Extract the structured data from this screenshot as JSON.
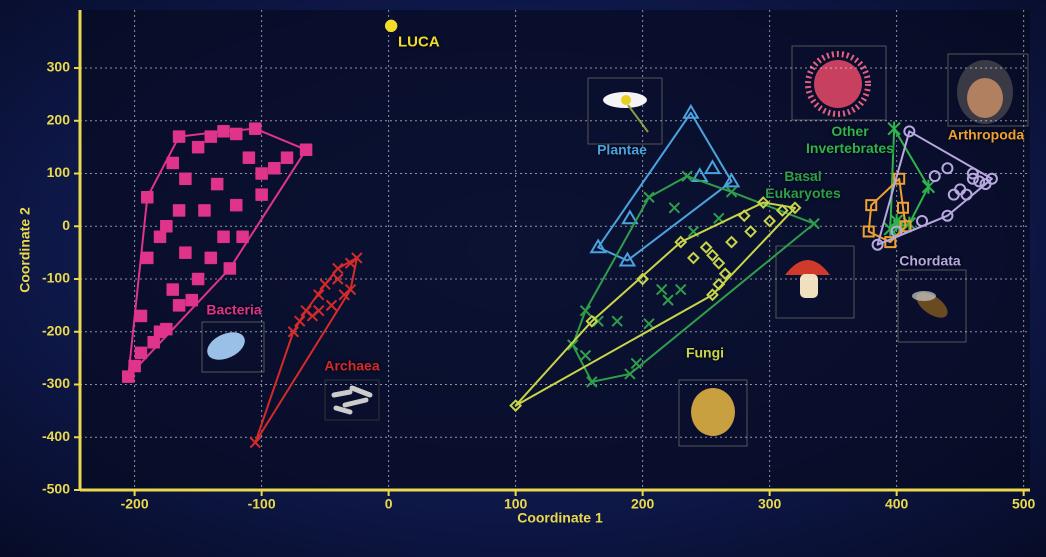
{
  "chart_data": {
    "type": "scatter",
    "xlabel": "Coordinate 1",
    "ylabel": "Coordinate 2",
    "xlim": [
      -243,
      505
    ],
    "ylim": [
      -500,
      410
    ],
    "xticks": [
      -200,
      -100,
      0,
      100,
      200,
      300,
      400,
      500
    ],
    "yticks": [
      -500,
      -400,
      -300,
      -200,
      -100,
      0,
      100,
      200,
      300
    ],
    "grid": true,
    "series": [
      {
        "name": "Bacteria",
        "color": "#e0338a",
        "marker": "filled-square",
        "x": [
          -205,
          -200,
          -195,
          -185,
          -175,
          -165,
          -195,
          -190,
          -190,
          -180,
          -175,
          -165,
          -160,
          -170,
          -165,
          -150,
          -140,
          -130,
          -120,
          -105,
          -110,
          -100,
          -90,
          -80,
          -65,
          -100,
          -120,
          -130,
          -140,
          -150,
          -155,
          -125,
          -115,
          -135,
          -145,
          -160,
          -170,
          -180
        ],
        "y": [
          -285,
          -265,
          -240,
          -220,
          -195,
          -150,
          -170,
          -60,
          55,
          -20,
          0,
          30,
          90,
          120,
          170,
          150,
          170,
          180,
          175,
          185,
          130,
          100,
          110,
          130,
          145,
          60,
          40,
          -20,
          -60,
          -100,
          -140,
          -80,
          -20,
          80,
          30,
          -50,
          -120,
          -200
        ]
      },
      {
        "name": "Archaea",
        "color": "#d42a2a",
        "marker": "cross",
        "x": [
          -105,
          -75,
          -70,
          -65,
          -55,
          -50,
          -40,
          -30,
          -25,
          -30,
          -35,
          -45,
          -60,
          -40,
          -55
        ],
        "y": [
          -410,
          -200,
          -180,
          -160,
          -130,
          -110,
          -80,
          -70,
          -60,
          -120,
          -130,
          -150,
          -170,
          -100,
          -160
        ]
      },
      {
        "name": "LUCA",
        "color": "#f2dc2a",
        "marker": "dot",
        "x": [
          2
        ],
        "y": [
          380
        ]
      },
      {
        "name": "Plantae",
        "color": "#4aa3df",
        "marker": "open-triangle",
        "x": [
          238,
          270,
          255,
          245,
          190,
          188,
          165
        ],
        "y": [
          215,
          85,
          110,
          95,
          15,
          -65,
          -40
        ]
      },
      {
        "name": "Basal Eukaryotes",
        "color": "#2e9e4a",
        "marker": "cross",
        "x": [
          145,
          160,
          190,
          195,
          205,
          215,
          220,
          230,
          180,
          165,
          155,
          155,
          205,
          225,
          235,
          270,
          260,
          240,
          335
        ],
        "y": [
          -225,
          -295,
          -280,
          -260,
          -185,
          -120,
          -140,
          -120,
          -180,
          -180,
          -160,
          -245,
          55,
          35,
          95,
          65,
          15,
          -10,
          5
        ]
      },
      {
        "name": "Fungi",
        "color": "#c8d44a",
        "marker": "open-diamond",
        "x": [
          100,
          160,
          200,
          230,
          255,
          260,
          250,
          270,
          285,
          300,
          310,
          320,
          295,
          280,
          265,
          260,
          255,
          240
        ],
        "y": [
          -340,
          -180,
          -100,
          -30,
          -55,
          -70,
          -40,
          -30,
          -10,
          10,
          30,
          35,
          45,
          20,
          -90,
          -110,
          -130,
          -60
        ]
      },
      {
        "name": "Other Invertebrates",
        "color": "#2fb34a",
        "marker": "asterisk",
        "x": [
          398,
          425,
          400,
          395,
          402,
          410
        ],
        "y": [
          185,
          75,
          10,
          -5,
          0,
          5
        ]
      },
      {
        "name": "Arthropoda",
        "color": "#f0a030",
        "marker": "open-square",
        "x": [
          380,
          402,
          405,
          407,
          395,
          378
        ],
        "y": [
          40,
          90,
          35,
          0,
          -30,
          -10
        ]
      },
      {
        "name": "Chordata",
        "color": "#b8a8e0",
        "marker": "open-circle",
        "x": [
          410,
          385,
          400,
          420,
          440,
          450,
          460,
          465,
          470,
          455,
          440,
          430,
          460,
          475,
          445
        ],
        "y": [
          180,
          -35,
          -10,
          10,
          20,
          70,
          90,
          85,
          80,
          60,
          110,
          95,
          100,
          90,
          60
        ]
      }
    ]
  }
}
